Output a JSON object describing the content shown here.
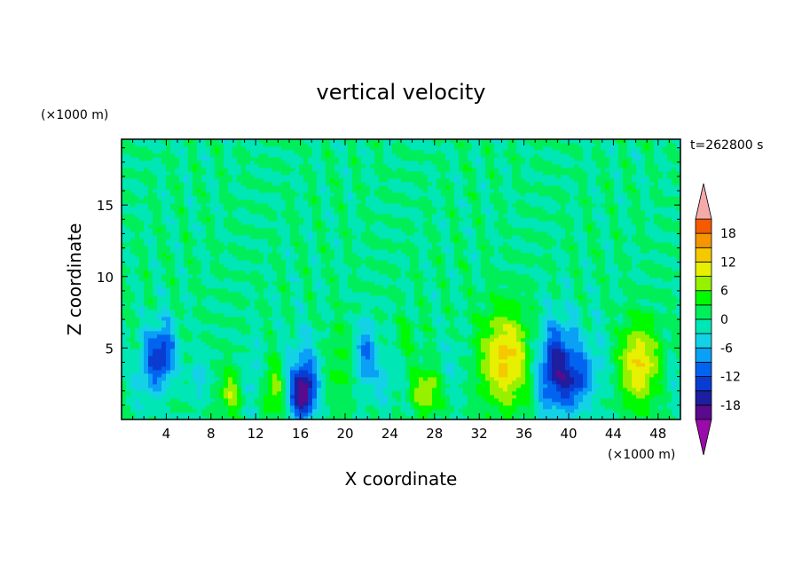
{
  "chart_data": {
    "type": "heatmap",
    "title": "vertical velocity",
    "xlabel": "X coordinate",
    "ylabel": "Z coordinate",
    "x_unit": "(×1000 m)",
    "y_unit": "(×1000 m)",
    "time_label": "t=262800 s",
    "xlim": [
      0,
      50
    ],
    "ylim": [
      0,
      19.6
    ],
    "x_ticks": [
      4,
      8,
      12,
      16,
      20,
      24,
      28,
      32,
      36,
      40,
      44,
      48
    ],
    "x_tick_labels": [
      "4",
      "8",
      "12",
      "16",
      "20",
      "24",
      "28",
      "32",
      "36",
      "40",
      "44",
      "48"
    ],
    "y_ticks": [
      5,
      10,
      15
    ],
    "y_tick_labels": [
      "5",
      "10",
      "15"
    ],
    "colorbar": {
      "levels": [
        -21,
        -18,
        -15,
        -12,
        -9,
        -6,
        -3,
        0,
        3,
        6,
        9,
        12,
        15,
        18,
        21
      ],
      "tick_values": [
        18,
        12,
        6,
        0,
        -6,
        -12,
        -18
      ],
      "tick_labels": [
        "18",
        "12",
        "6",
        "0",
        "-6",
        "-12",
        "-18"
      ],
      "colors": [
        "#5a0a8c",
        "#1e1ea0",
        "#0a3cd2",
        "#0064f0",
        "#0aa0f5",
        "#14d2e6",
        "#00e6b4",
        "#00ee5a",
        "#00fa00",
        "#96f000",
        "#e6f000",
        "#f5c800",
        "#f59600",
        "#f55a00",
        "#e6141e"
      ],
      "under_color": "#9b0aaa",
      "over_color": "#f5aaaa"
    },
    "features": [
      {
        "x": 3.6,
        "z": 4.6,
        "value": -14,
        "sx": 0.9,
        "sz": 1.5
      },
      {
        "x": 2.2,
        "z": 3.2,
        "value": -5,
        "sx": 0.8,
        "sz": 1.6
      },
      {
        "x": 7.0,
        "z": 3.0,
        "value": -5,
        "sx": 0.5,
        "sz": 1.2
      },
      {
        "x": 9.8,
        "z": 1.9,
        "value": 8,
        "sx": 0.7,
        "sz": 1.2
      },
      {
        "x": 11.8,
        "z": 3.0,
        "value": -4,
        "sx": 0.6,
        "sz": 2.0
      },
      {
        "x": 13.6,
        "z": 2.0,
        "value": 8,
        "sx": 0.7,
        "sz": 1.5
      },
      {
        "x": 16.2,
        "z": 1.8,
        "value": -17,
        "sx": 0.8,
        "sz": 1.3
      },
      {
        "x": 16.5,
        "z": 3.5,
        "value": -6,
        "sx": 1.2,
        "sz": 2.0
      },
      {
        "x": 19.2,
        "z": 3.6,
        "value": 4,
        "sx": 1.1,
        "sz": 2.2
      },
      {
        "x": 21.8,
        "z": 4.6,
        "value": -10,
        "sx": 0.6,
        "sz": 1.6
      },
      {
        "x": 23.5,
        "z": 3.0,
        "value": -4,
        "sx": 0.9,
        "sz": 1.5
      },
      {
        "x": 25.5,
        "z": 5.6,
        "value": 3,
        "sx": 0.8,
        "sz": 1.0
      },
      {
        "x": 27.4,
        "z": 2.0,
        "value": 9,
        "sx": 1.0,
        "sz": 1.2
      },
      {
        "x": 29.6,
        "z": 3.6,
        "value": -3,
        "sx": 1.0,
        "sz": 1.8
      },
      {
        "x": 34.4,
        "z": 4.2,
        "value": 13,
        "sx": 1.7,
        "sz": 2.4
      },
      {
        "x": 38.9,
        "z": 3.6,
        "value": -17,
        "sx": 1.3,
        "sz": 2.2
      },
      {
        "x": 40.8,
        "z": 2.6,
        "value": -8,
        "sx": 0.7,
        "sz": 1.2
      },
      {
        "x": 42.5,
        "z": 4.0,
        "value": -4,
        "sx": 1.2,
        "sz": 2.0
      },
      {
        "x": 46.3,
        "z": 3.9,
        "value": 12,
        "sx": 1.4,
        "sz": 2.0
      },
      {
        "x": 49.0,
        "z": 3.0,
        "value": -2,
        "sx": 0.8,
        "sz": 2.0
      }
    ]
  }
}
